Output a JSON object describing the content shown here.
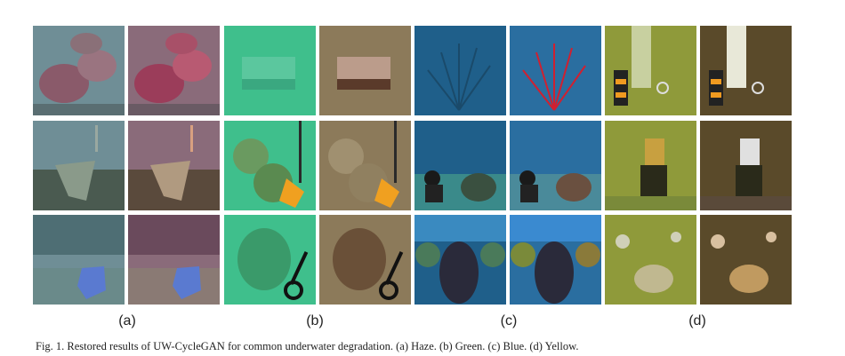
{
  "figure": {
    "subfigure_labels": [
      "(a)",
      "(b)",
      "(c)",
      "(d)"
    ],
    "caption": "Fig. 1.   Restored results of UW-CycleGAN for common underwater degradation. (a) Haze. (b) Green. (c) Blue. (d) Yellow."
  },
  "panels": [
    {
      "id": "haze",
      "degraded_tint": "#6f8e96",
      "restored_tint": "#8a6b7a"
    },
    {
      "id": "green",
      "degraded_tint": "#3fbf8c",
      "restored_tint": "#8c7a5a"
    },
    {
      "id": "blue",
      "degraded_tint": "#1f5f8a",
      "restored_tint": "#2a6ea0"
    },
    {
      "id": "yellow",
      "degraded_tint": "#8f9a3a",
      "restored_tint": "#5a4a2a"
    }
  ]
}
